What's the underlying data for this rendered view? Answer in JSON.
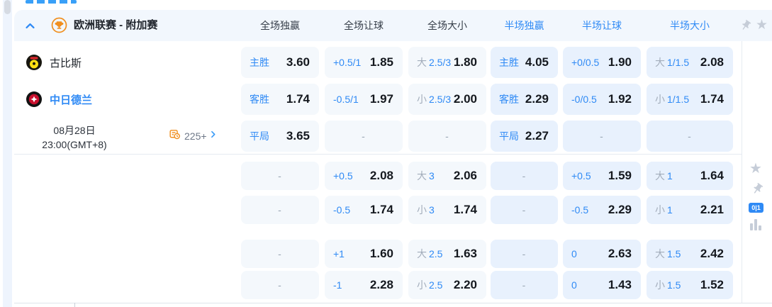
{
  "league": {
    "title": "欧洲联赛 - 附加赛",
    "columns": [
      {
        "label": "全场独赢",
        "scope": "full"
      },
      {
        "label": "全场让球",
        "scope": "full"
      },
      {
        "label": "全场大小",
        "scope": "full"
      },
      {
        "label": "半场独赢",
        "scope": "half"
      },
      {
        "label": "半场让球",
        "scope": "half"
      },
      {
        "label": "半场大小",
        "scope": "half"
      }
    ]
  },
  "match": {
    "home_team": "古比斯",
    "away_team": "中日德兰",
    "date": "08月28日",
    "time": "23:00(GMT+8)",
    "markets_count": "225+"
  },
  "odds": {
    "main_rows": [
      [
        {
          "label": "主胜",
          "value": "3.60"
        },
        {
          "label": "+0.5/1",
          "value": "1.85"
        },
        {
          "prefix": "大",
          "label": "2.5/3",
          "value": "1.80"
        },
        {
          "label": "主胜",
          "value": "4.05"
        },
        {
          "label": "+0/0.5",
          "value": "1.90"
        },
        {
          "prefix": "大",
          "label": "1/1.5",
          "value": "2.08"
        }
      ],
      [
        {
          "label": "客胜",
          "value": "1.74"
        },
        {
          "label": "-0.5/1",
          "value": "1.97"
        },
        {
          "prefix": "小",
          "label": "2.5/3",
          "value": "2.00"
        },
        {
          "label": "客胜",
          "value": "2.29"
        },
        {
          "label": "-0/0.5",
          "value": "1.92"
        },
        {
          "prefix": "小",
          "label": "1/1.5",
          "value": "1.74"
        }
      ],
      [
        {
          "label": "平局",
          "value": "3.65"
        },
        {
          "dash": true
        },
        {
          "dash": true
        },
        {
          "label": "平局",
          "value": "2.27"
        },
        {
          "dash": true
        },
        {
          "dash": true
        }
      ]
    ],
    "extra_groups": [
      [
        [
          {
            "dash": true
          },
          {
            "label": "+0.5",
            "value": "2.08"
          },
          {
            "prefix": "大",
            "label": "3",
            "value": "2.06"
          },
          {
            "dash": true
          },
          {
            "label": "+0.5",
            "value": "1.59"
          },
          {
            "prefix": "大",
            "label": "1",
            "value": "1.64"
          }
        ],
        [
          {
            "dash": true
          },
          {
            "label": "-0.5",
            "value": "1.74"
          },
          {
            "prefix": "小",
            "label": "3",
            "value": "1.74"
          },
          {
            "dash": true
          },
          {
            "label": "-0.5",
            "value": "2.29"
          },
          {
            "prefix": "小",
            "label": "1",
            "value": "2.21"
          }
        ]
      ],
      [
        [
          {
            "dash": true
          },
          {
            "label": "+1",
            "value": "1.60"
          },
          {
            "prefix": "大",
            "label": "2.5",
            "value": "1.63"
          },
          {
            "dash": true
          },
          {
            "label": "0",
            "value": "2.63"
          },
          {
            "prefix": "大",
            "label": "1.5",
            "value": "2.42"
          }
        ],
        [
          {
            "dash": true
          },
          {
            "label": "-1",
            "value": "2.28"
          },
          {
            "prefix": "小",
            "label": "2.5",
            "value": "2.20"
          },
          {
            "dash": true
          },
          {
            "label": "0",
            "value": "1.43"
          },
          {
            "prefix": "小",
            "label": "1.5",
            "value": "1.52"
          }
        ]
      ]
    ]
  },
  "side_rail": {
    "badge_label": "0|1",
    "icons": [
      "star-icon",
      "pin-icon",
      "odds-board-icon",
      "stats-bar-icon"
    ]
  },
  "colors": {
    "accent": "#2f8af5",
    "odds_text": "#14181e",
    "muted_label": "#9aa6b4",
    "cell_full_bg": "#f4f8fc",
    "cell_half_bg": "#e8f1fd",
    "header_bg": "#f2f7fd",
    "orange": "#f08f1f",
    "icon_gray": "#c6cdd8"
  }
}
